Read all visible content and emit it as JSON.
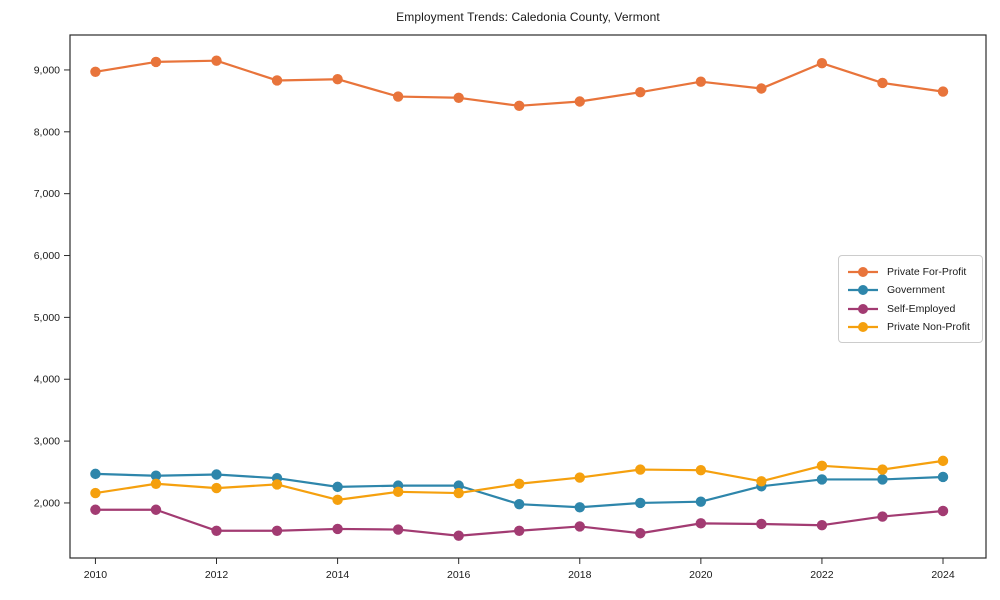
{
  "chart_data": {
    "type": "line",
    "title": "Employment Trends: Caledonia County, Vermont",
    "xlabel": "",
    "ylabel": "",
    "grid": false,
    "legend_position": "right",
    "x": [
      2010,
      2011,
      2012,
      2013,
      2014,
      2015,
      2016,
      2017,
      2018,
      2019,
      2020,
      2021,
      2022,
      2023,
      2024
    ],
    "x_ticks": [
      2010,
      2012,
      2014,
      2016,
      2018,
      2020,
      2022,
      2024
    ],
    "y_ticks": [
      2000,
      3000,
      4000,
      5000,
      6000,
      7000,
      8000,
      9000
    ],
    "xlim": [
      2009.58,
      2024.71
    ],
    "ylim": [
      1110,
      9565
    ],
    "series": [
      {
        "name": "Private For-Profit",
        "color": "#E8743B",
        "values": [
          8970,
          9130,
          9150,
          8830,
          8850,
          8570,
          8550,
          8420,
          8490,
          8640,
          8810,
          8700,
          9110,
          8790,
          8650
        ]
      },
      {
        "name": "Government",
        "color": "#2E86AB",
        "values": [
          2470,
          2440,
          2460,
          2400,
          2260,
          2280,
          2280,
          1980,
          1930,
          2000,
          2020,
          2270,
          2380,
          2380,
          2420
        ]
      },
      {
        "name": "Self-Employed",
        "color": "#A23B72",
        "values": [
          1890,
          1890,
          1550,
          1550,
          1580,
          1570,
          1470,
          1550,
          1620,
          1510,
          1670,
          1660,
          1640,
          1780,
          1870
        ]
      },
      {
        "name": "Private Non-Profit",
        "color": "#F5A00E",
        "values": [
          2160,
          2310,
          2240,
          2300,
          2050,
          2180,
          2160,
          2310,
          2410,
          2540,
          2530,
          2350,
          2600,
          2540,
          2680
        ]
      }
    ]
  }
}
